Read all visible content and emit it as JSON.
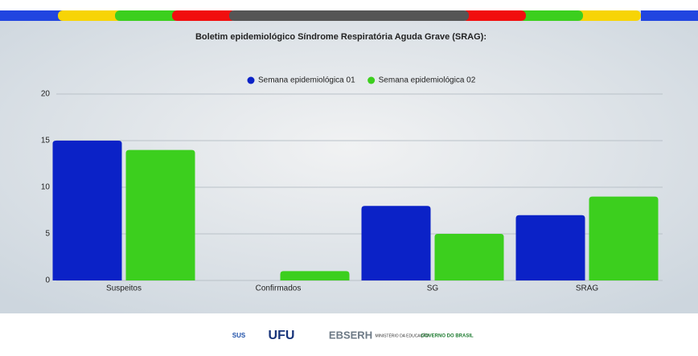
{
  "chart_data": {
    "type": "bar",
    "title": "Boletim epidemiológico Síndrome Respiratória Aguda Grave (SRAG):",
    "categories": [
      "Suspeitos",
      "Confirmados",
      "SG",
      "SRAG"
    ],
    "series": [
      {
        "name": "Semana epidemiológica 01",
        "color": "#0b22c7",
        "values": [
          15,
          0,
          8,
          7
        ]
      },
      {
        "name": "Semana epidemiológica 02",
        "color": "#3ccf1e",
        "values": [
          14,
          1,
          5,
          9
        ]
      }
    ],
    "ylim": [
      0,
      20
    ],
    "yticks": [
      0,
      5,
      10,
      15,
      20
    ],
    "grid": true,
    "legend": "top"
  },
  "footer": {
    "logos": [
      "SUS",
      "UFU",
      "EBSERH",
      "MINISTÉRIO DA EDUCAÇÃO",
      "GOVERNO DO BRASIL"
    ]
  }
}
